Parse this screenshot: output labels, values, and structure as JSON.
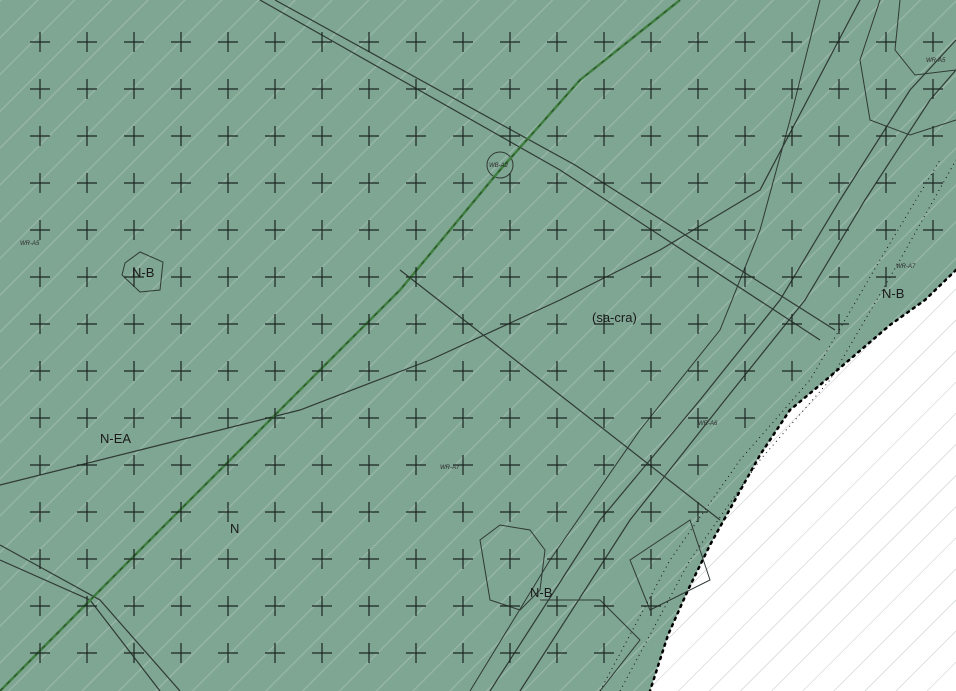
{
  "map": {
    "colors": {
      "zone_fill": "#7fa593",
      "hatch": "#a7c2b4",
      "cross": "#1b2620",
      "line": "#2f3a34",
      "rail": "#3f7f3f",
      "background": "#ffffff",
      "boundary": "#000000"
    },
    "zone_labels": {
      "nb_top": "N-B",
      "n_ea": "N-EA",
      "n": "N",
      "sa_cra": "(sa-cra)",
      "nb_right": "N-B",
      "nb_bottom": "N-B"
    },
    "small_labels": {
      "wr_a5_top": "WR-A5",
      "wr_a5_left": "WR-A5",
      "wb_a2": "WB-A2",
      "wr_a7_right": "WR-A7",
      "wr_a7_center": "WR-A7",
      "wr_a6": "WR-A6"
    }
  }
}
